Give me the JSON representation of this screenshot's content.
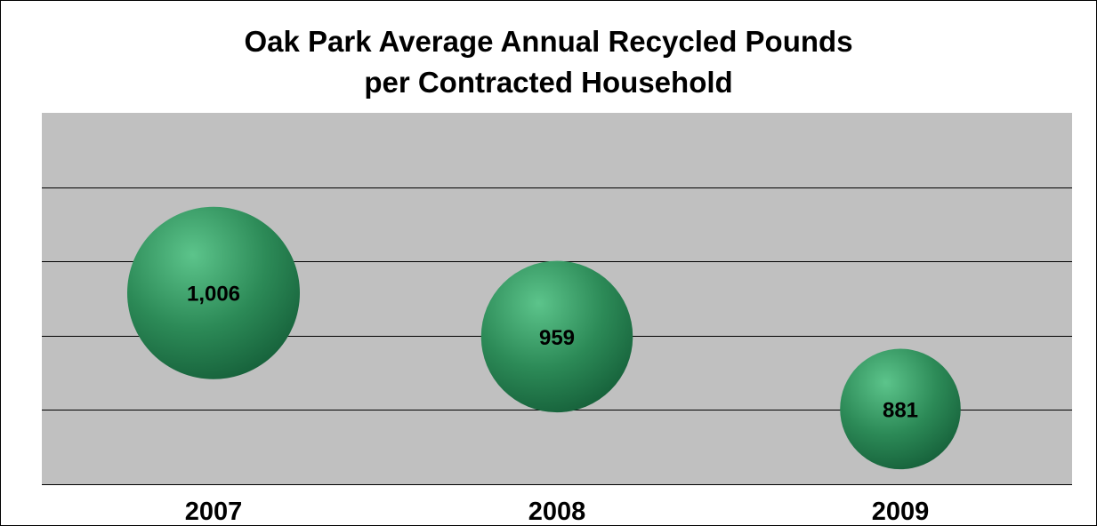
{
  "chart_data": {
    "type": "bubble",
    "title": "Oak Park Average Annual Recycled Pounds",
    "subtitle": "per Contracted Household",
    "categories": [
      "2007",
      "2008",
      "2009"
    ],
    "values": [
      1006,
      959,
      881
    ],
    "value_labels": [
      "1,006",
      "959",
      "881"
    ],
    "xlabel": "",
    "ylabel": "",
    "grid": true,
    "legend": "none",
    "colors": {
      "plot_background": "#c0c0c0",
      "bubble_light": "#5cc48b",
      "bubble_mid": "#2c8a57",
      "bubble_dark": "#155f39",
      "gridline": "#000000"
    }
  }
}
